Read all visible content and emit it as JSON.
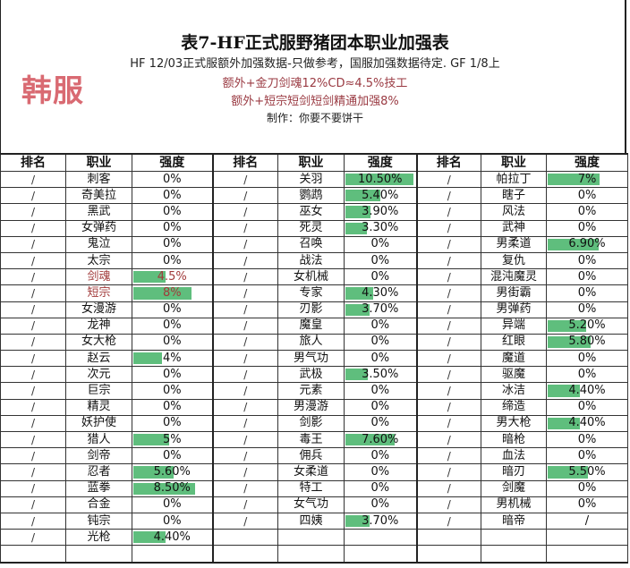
{
  "header": {
    "title": "表7-HF正式服野猪团本职业加强表",
    "subtitle": "HF 12/03正式服额外加强数据-只做参考，国服加强数据待定. GF 1/8上",
    "note1": "额外+金刀剑魂12%CD≈4.5%技工",
    "note2": "额外+短宗短剑短剑精通加强8%",
    "author": "制作：你要不要饼干",
    "server_label": "韩服"
  },
  "colors": {
    "bar": "#5fbe7d",
    "highlight_text": "#a13a3a",
    "server_label": "#d96a72"
  },
  "bar_max_percent": 10.5,
  "columns": {
    "rank": "排名",
    "job": "职业",
    "strength": "强度"
  },
  "groups": [
    {
      "rows": [
        {
          "rank": "/",
          "job": "刺客",
          "value": "0%"
        },
        {
          "rank": "/",
          "job": "奇美拉",
          "value": "0%"
        },
        {
          "rank": "/",
          "job": "黑武",
          "value": "0%"
        },
        {
          "rank": "/",
          "job": "女弹药",
          "value": "0%"
        },
        {
          "rank": "/",
          "job": "鬼泣",
          "value": "0%"
        },
        {
          "rank": "/",
          "job": "太宗",
          "value": "0%"
        },
        {
          "rank": "/",
          "job": "剑魂",
          "value": "4.5%",
          "highlight": true
        },
        {
          "rank": "/",
          "job": "短宗",
          "value": "8%",
          "highlight": true
        },
        {
          "rank": "/",
          "job": "女漫游",
          "value": "0%"
        },
        {
          "rank": "/",
          "job": "龙神",
          "value": "0%"
        },
        {
          "rank": "/",
          "job": "女大枪",
          "value": "0%"
        },
        {
          "rank": "/",
          "job": "赵云",
          "value": "4%"
        },
        {
          "rank": "/",
          "job": "次元",
          "value": "0%"
        },
        {
          "rank": "/",
          "job": "巨宗",
          "value": "0%"
        },
        {
          "rank": "/",
          "job": "精灵",
          "value": "0%"
        },
        {
          "rank": "/",
          "job": "妖护使",
          "value": "0%"
        },
        {
          "rank": "/",
          "job": "猎人",
          "value": "5%"
        },
        {
          "rank": "/",
          "job": "剑帝",
          "value": "0%"
        },
        {
          "rank": "/",
          "job": "忍者",
          "value": "5.60%"
        },
        {
          "rank": "/",
          "job": "蓝拳",
          "value": "8.50%"
        },
        {
          "rank": "/",
          "job": "合金",
          "value": "0%"
        },
        {
          "rank": "/",
          "job": "钝宗",
          "value": "0%"
        },
        {
          "rank": "/",
          "job": "光枪",
          "value": "4.40%"
        }
      ]
    },
    {
      "rows": [
        {
          "rank": "/",
          "job": "关羽",
          "value": "10.50%"
        },
        {
          "rank": "/",
          "job": "鹦鹉",
          "value": "5.40%"
        },
        {
          "rank": "/",
          "job": "巫女",
          "value": "3.90%"
        },
        {
          "rank": "/",
          "job": "死灵",
          "value": "3.30%"
        },
        {
          "rank": "/",
          "job": "召唤",
          "value": "0%"
        },
        {
          "rank": "/",
          "job": "战法",
          "value": "0%"
        },
        {
          "rank": "/",
          "job": "女机械",
          "value": "0%"
        },
        {
          "rank": "/",
          "job": "专家",
          "value": "4.30%"
        },
        {
          "rank": "/",
          "job": "刃影",
          "value": "3.70%"
        },
        {
          "rank": "/",
          "job": "魔皇",
          "value": "0%"
        },
        {
          "rank": "/",
          "job": "旅人",
          "value": "0%"
        },
        {
          "rank": "/",
          "job": "男气功",
          "value": "0%"
        },
        {
          "rank": "/",
          "job": "武极",
          "value": "3.50%"
        },
        {
          "rank": "/",
          "job": "元素",
          "value": "0%"
        },
        {
          "rank": "/",
          "job": "男漫游",
          "value": "0%"
        },
        {
          "rank": "/",
          "job": "剑影",
          "value": "0%"
        },
        {
          "rank": "/",
          "job": "毒王",
          "value": "7.60%"
        },
        {
          "rank": "/",
          "job": "佣兵",
          "value": "0%"
        },
        {
          "rank": "/",
          "job": "女柔道",
          "value": "0%"
        },
        {
          "rank": "/",
          "job": "特工",
          "value": "0%"
        },
        {
          "rank": "/",
          "job": "女气功",
          "value": "0%"
        },
        {
          "rank": "/",
          "job": "四姨",
          "value": "3.70%"
        }
      ]
    },
    {
      "rows": [
        {
          "rank": "/",
          "job": "帕拉丁",
          "value": "7%"
        },
        {
          "rank": "/",
          "job": "瞎子",
          "value": "0%"
        },
        {
          "rank": "/",
          "job": "风法",
          "value": "0%"
        },
        {
          "rank": "/",
          "job": "武神",
          "value": "0%"
        },
        {
          "rank": "/",
          "job": "男柔道",
          "value": "6.90%"
        },
        {
          "rank": "/",
          "job": "复仇",
          "value": "0%"
        },
        {
          "rank": "/",
          "job": "混沌魔灵",
          "value": "0%"
        },
        {
          "rank": "/",
          "job": "男街霸",
          "value": "0%"
        },
        {
          "rank": "/",
          "job": "男弹药",
          "value": "0%"
        },
        {
          "rank": "/",
          "job": "异端",
          "value": "5.20%"
        },
        {
          "rank": "/",
          "job": "红眼",
          "value": "5.80%"
        },
        {
          "rank": "/",
          "job": "魔道",
          "value": "0%"
        },
        {
          "rank": "/",
          "job": "驱魔",
          "value": "0%"
        },
        {
          "rank": "/",
          "job": "冰洁",
          "value": "4.40%"
        },
        {
          "rank": "/",
          "job": "缔造",
          "value": "0%"
        },
        {
          "rank": "/",
          "job": "男大枪",
          "value": "4.40%"
        },
        {
          "rank": "/",
          "job": "暗枪",
          "value": "0%"
        },
        {
          "rank": "/",
          "job": "血法",
          "value": "0%"
        },
        {
          "rank": "/",
          "job": "暗刃",
          "value": "5.50%"
        },
        {
          "rank": "/",
          "job": "剑魔",
          "value": "0%"
        },
        {
          "rank": "/",
          "job": "男机械",
          "value": "0%"
        },
        {
          "rank": "/",
          "job": "暗帝",
          "value": "/"
        }
      ]
    }
  ]
}
